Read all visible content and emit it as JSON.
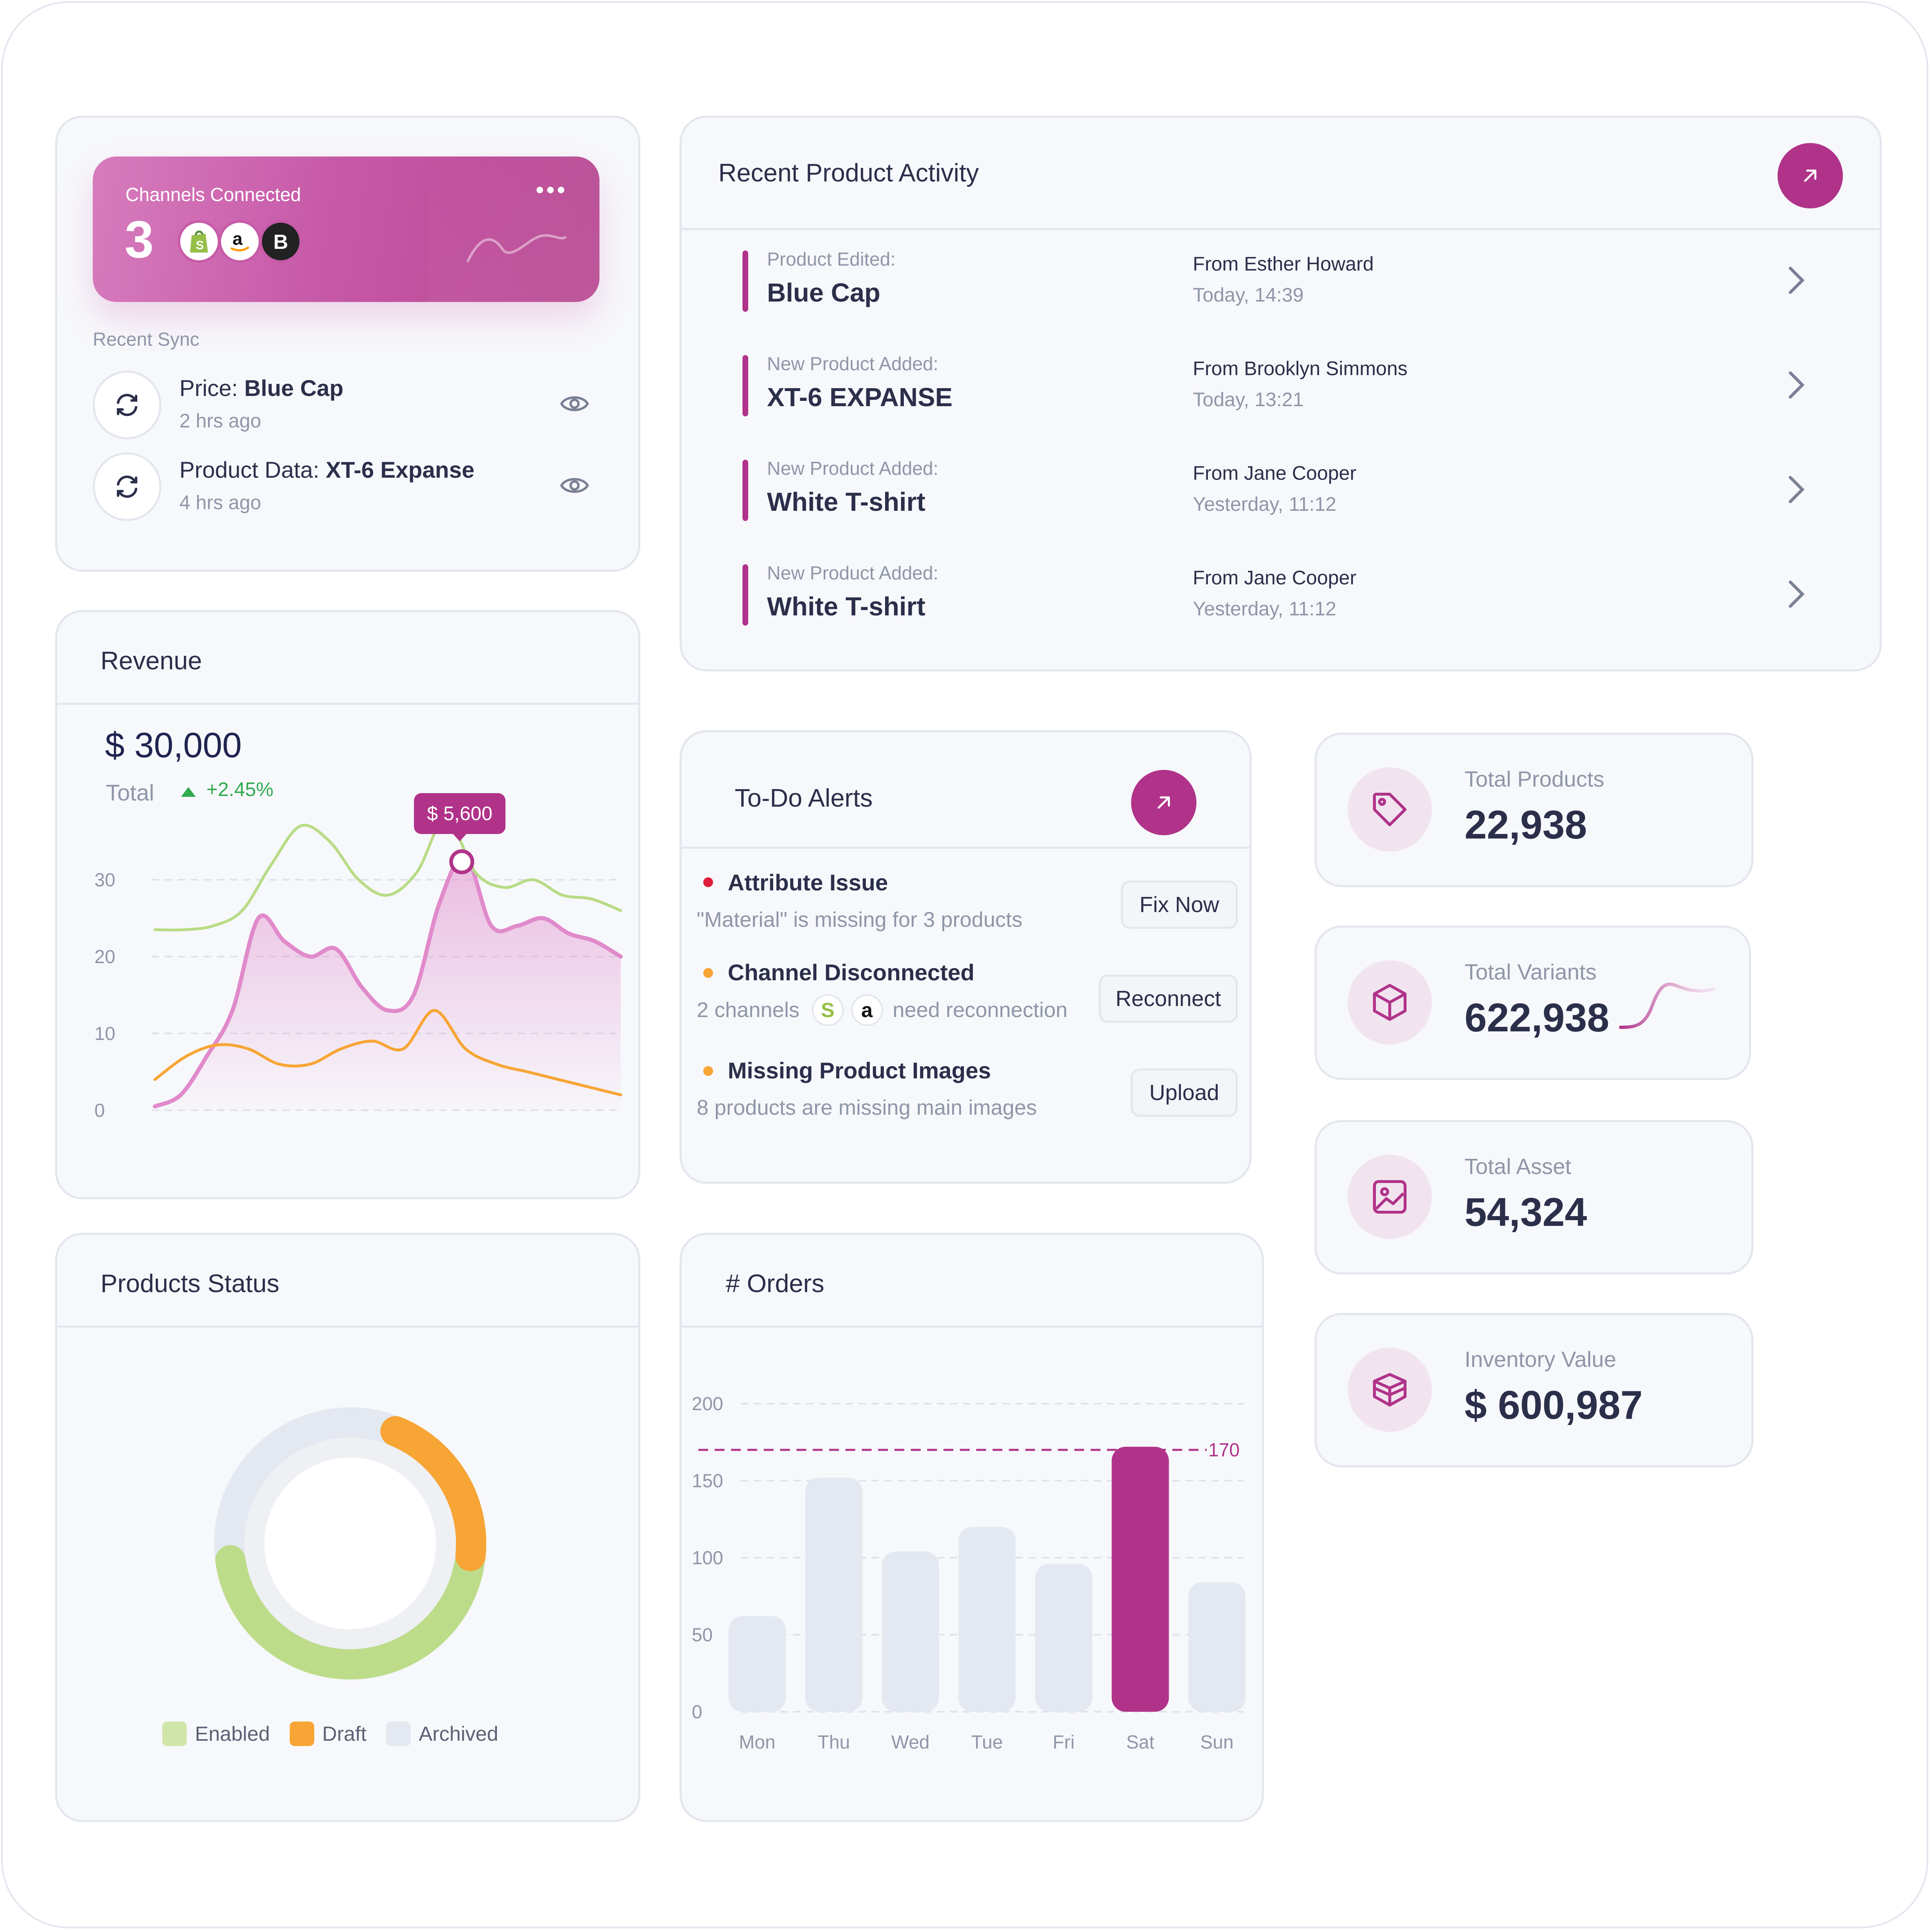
{
  "colors": {
    "accent": "#b03389",
    "accent_light": "#e08acb",
    "green": "#b8dc86",
    "orange": "#f7a535",
    "grey_bar": "#e4e8f0",
    "positive": "#2faa4f",
    "alert_red": "#e01e3c",
    "alert_orange": "#f7a535"
  },
  "channels": {
    "title": "Channels Connected",
    "count": "3",
    "logos": [
      "shopify-icon",
      "amazon-icon",
      "bigcommerce-icon"
    ],
    "recent_sync_label": "Recent Sync",
    "sync_items": [
      {
        "prefix": "Price: ",
        "name": "Blue Cap",
        "time": "2 hrs ago"
      },
      {
        "prefix": "Product Data: ",
        "name": "XT-6 Expanse",
        "time": "4 hrs ago"
      }
    ]
  },
  "activity": {
    "title": "Recent Product Activity",
    "items": [
      {
        "type": "Product Edited:",
        "product": "Blue Cap",
        "from": "From Esther Howard",
        "time": "Today, 14:39"
      },
      {
        "type": "New Product Added:",
        "product": "XT-6 EXPANSE",
        "from": "From Brooklyn Simmons",
        "time": "Today, 13:21"
      },
      {
        "type": "New Product Added:",
        "product": "White T-shirt",
        "from": "From Jane Cooper",
        "time": "Yesterday, 11:12"
      },
      {
        "type": "New Product Added:",
        "product": "White T-shirt",
        "from": "From Jane Cooper",
        "time": "Yesterday, 11:12"
      }
    ]
  },
  "revenue": {
    "title": "Revenue",
    "amount": "$ 30,000",
    "total_label": "Total",
    "change": "+2.45%",
    "tooltip": "$ 5,600"
  },
  "alerts": {
    "title": "To-Do Alerts",
    "items": [
      {
        "title": "Attribute Issue",
        "desc": "\"Material\" is missing for 3 products",
        "button": "Fix Now"
      },
      {
        "title": "Channel Disconnected",
        "desc_before": "2 channels",
        "desc_after": "need reconnection",
        "button": "Reconnect"
      },
      {
        "title": "Missing Product Images",
        "desc": "8 products are missing main images",
        "button": "Upload"
      }
    ]
  },
  "stats": [
    {
      "label": "Total Products",
      "value": "22,938",
      "icon": "tag-icon"
    },
    {
      "label": "Total Variants",
      "value": "622,938",
      "icon": "cube-icon"
    },
    {
      "label": "Total Asset",
      "value": "54,324",
      "icon": "image-icon"
    },
    {
      "label": "Inventory Value",
      "value": "$ 600,987",
      "icon": "box-open-icon"
    }
  ],
  "status": {
    "title": "Products Status",
    "legend": [
      "Enabled",
      "Draft",
      "Archived"
    ]
  },
  "orders": {
    "title": "# Orders"
  },
  "chart_data": [
    {
      "type": "area",
      "title": "Revenue",
      "yticks": [
        0,
        10,
        20,
        30
      ],
      "ylim": [
        0,
        30
      ],
      "grid": true,
      "series": [
        {
          "values": [
            0.5,
            2,
            7,
            13,
            25,
            22,
            20,
            21,
            16,
            13,
            15,
            27,
            33,
            24,
            24,
            25,
            23,
            22,
            20
          ],
          "color": "#e08acb",
          "fill": true
        },
        {
          "values": [
            23.5,
            23.5,
            24,
            26,
            32,
            37,
            35,
            30,
            28,
            31,
            38,
            31,
            29,
            30,
            28,
            27.5,
            26
          ],
          "color": "#b8dc86"
        },
        {
          "values": [
            4,
            7,
            8.5,
            8,
            6,
            6,
            8,
            9,
            8,
            13,
            8,
            6,
            5,
            4,
            3,
            2
          ],
          "color": "#f7a535"
        }
      ],
      "highlight": {
        "label": "$ 5,600"
      }
    },
    {
      "type": "pie",
      "title": "Products Status",
      "categories": [
        "Enabled",
        "Draft",
        "Archived"
      ],
      "values": [
        42,
        18,
        40
      ],
      "legend": "bottom"
    },
    {
      "type": "bar",
      "title": "# Orders",
      "categories": [
        "Mon",
        "Thu",
        "Wed",
        "Tue",
        "Fri",
        "Sat",
        "Sun"
      ],
      "values": [
        62,
        152,
        104,
        120,
        96,
        172,
        84
      ],
      "highlight_index": 5,
      "ylim": [
        0,
        200
      ],
      "yticks": [
        0,
        50,
        100,
        150,
        200
      ],
      "reference_line": {
        "value": 170,
        "label": "170"
      },
      "grid": true
    }
  ]
}
